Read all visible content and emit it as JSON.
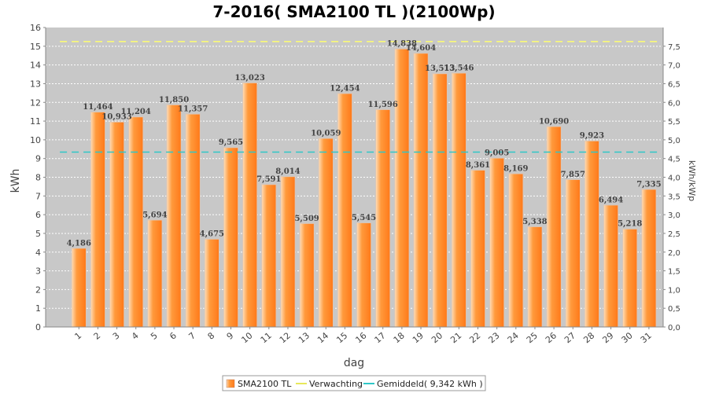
{
  "chart_data": {
    "type": "bar",
    "title": "7-2016( SMA2100 TL )(2100Wp)",
    "xlabel": "dag",
    "ylabel": "kWh",
    "y2label": "kWh/kWp",
    "ylim": [
      0,
      16
    ],
    "y2lim": [
      0,
      8
    ],
    "yticks": [
      "0",
      "1",
      "2",
      "3",
      "4",
      "5",
      "6",
      "7",
      "8",
      "9",
      "10",
      "11",
      "12",
      "13",
      "14",
      "15",
      "16"
    ],
    "y2ticks": [
      "0,0",
      "0,5",
      "1,0",
      "1,5",
      "2,0",
      "2,5",
      "3,0",
      "3,5",
      "4,0",
      "4,5",
      "5,0",
      "5,5",
      "6,0",
      "6,5",
      "7,0",
      "7,5"
    ],
    "categories": [
      "1",
      "2",
      "3",
      "4",
      "5",
      "6",
      "7",
      "8",
      "9",
      "10",
      "11",
      "12",
      "13",
      "14",
      "15",
      "16",
      "17",
      "18",
      "19",
      "20",
      "21",
      "22",
      "23",
      "24",
      "25",
      "26",
      "27",
      "28",
      "29",
      "30",
      "31"
    ],
    "series": [
      {
        "name": "SMA2100 TL",
        "values": [
          4.186,
          11.464,
          10.933,
          11.204,
          5.694,
          11.85,
          11.357,
          4.675,
          9.565,
          13.023,
          7.591,
          8.014,
          5.509,
          10.059,
          12.454,
          5.545,
          11.596,
          14.838,
          14.604,
          13.513,
          13.546,
          8.361,
          9.005,
          8.169,
          5.338,
          10.69,
          7.857,
          9.923,
          6.494,
          5.218,
          7.335
        ],
        "labels": [
          "4,186",
          "11,464",
          "10,933",
          "11,204",
          "5,694",
          "11,850",
          "11,357",
          "4,675",
          "9,565",
          "13,023",
          "7,591",
          "8,014",
          "5,509",
          "10,059",
          "12,454",
          "5,545",
          "11,596",
          "14,838",
          "14,604",
          "13,513",
          "13,546",
          "8,361",
          "9,005",
          "8,169",
          "5,338",
          "10,690",
          "7,857",
          "9,923",
          "6,494",
          "5,218",
          "7,335"
        ]
      }
    ],
    "expected": {
      "name": "Verwachting",
      "value": 15.25
    },
    "average": {
      "name": "Gemiddeld( 9,342 kWh )",
      "value": 9.342
    },
    "legend": [
      "SMA2100 TL",
      "Verwachting",
      "Gemiddeld( 9,342 kWh )"
    ],
    "legend_position": "bottom",
    "grid": true
  },
  "colors": {
    "bar": "#ff8a2a",
    "bar_light": "#ffcf9a",
    "bar_edge": "#c8b0a0",
    "expected": "#ffff66",
    "average": "#2ec7c7",
    "plot_bg": "#c8c8c8"
  }
}
